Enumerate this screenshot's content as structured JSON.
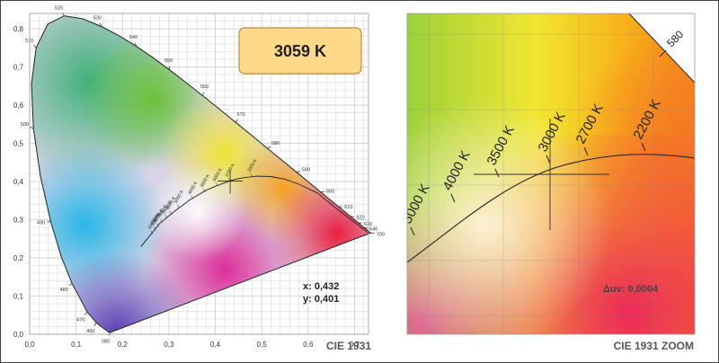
{
  "cct_badge": {
    "value": "3059 K",
    "bg": "#ffd98a",
    "border": "#c8963c"
  },
  "readout": {
    "x": "x: 0,432",
    "y": "y: 0,401"
  },
  "left_title": "CIE 1931",
  "right_title": "CIE 1931 ZOOM",
  "duv": "Δuv: 0,0004",
  "zoom_wavelength": "580",
  "zoom_cct_labels": [
    "5000 K",
    "4000 K",
    "3500 K",
    "3000 K",
    "2700 K",
    "2200 K"
  ],
  "small_cct_labels": [
    "10000 K",
    "9000 K",
    "8000 K",
    "7000 K",
    "6500 K",
    "6000 K",
    "5000 K",
    "4000 K",
    "3500 K",
    "3000 K",
    "2700 K",
    "2200 K"
  ],
  "wavelength_labels": [
    "380",
    "460",
    "470",
    "480",
    "490",
    "500",
    "510",
    "520",
    "530",
    "540",
    "550",
    "560",
    "570",
    "580",
    "590",
    "600",
    "610",
    "620",
    "630",
    "640",
    "700"
  ],
  "chart_data": {
    "type": "scatter",
    "title": "CIE 1931",
    "x_ticks": [
      "0,0",
      "0,1",
      "0,2",
      "0,3",
      "0,4",
      "0,5",
      "0,6",
      "0,7"
    ],
    "y_ticks": [
      "0,0",
      "0,1",
      "0,2",
      "0,3",
      "0,4",
      "0,5",
      "0,6",
      "0,7",
      "0,8"
    ],
    "xlim": [
      0,
      0.73
    ],
    "ylim": [
      0,
      0.84
    ],
    "grid": true,
    "point": {
      "x": 0.432,
      "y": 0.401,
      "cct": 3059
    },
    "planckian_locus": [
      [
        0.24,
        0.23
      ],
      [
        0.28,
        0.29
      ],
      [
        0.31,
        0.32
      ],
      [
        0.345,
        0.352
      ],
      [
        0.38,
        0.377
      ],
      [
        0.405,
        0.39
      ],
      [
        0.437,
        0.404
      ],
      [
        0.46,
        0.41
      ],
      [
        0.49,
        0.414
      ],
      [
        0.52,
        0.413
      ],
      [
        0.55,
        0.406
      ],
      [
        0.58,
        0.393
      ],
      [
        0.62,
        0.37
      ],
      [
        0.66,
        0.33
      ],
      [
        0.73,
        0.265
      ]
    ]
  }
}
